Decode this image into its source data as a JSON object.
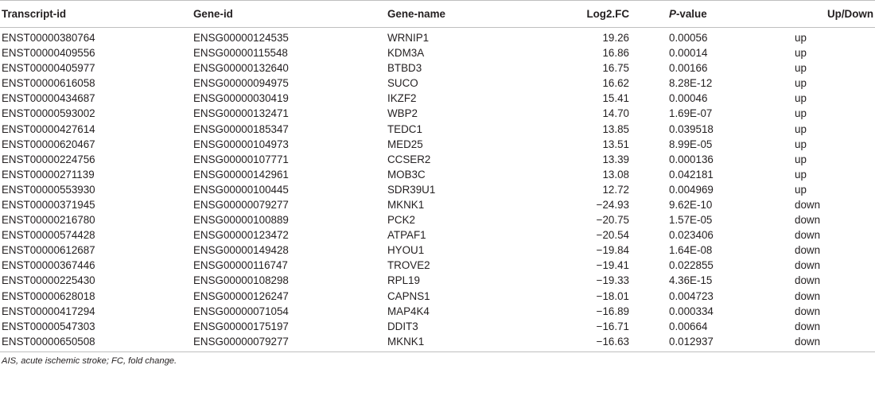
{
  "table": {
    "headers": {
      "transcript_id": "Transcript-id",
      "gene_id": "Gene-id",
      "gene_name": "Gene-name",
      "log2fc": "Log2.FC",
      "pvalue_p": "P",
      "pvalue_rest": "-value",
      "updown": "Up/Down"
    },
    "rows": [
      {
        "transcript": "ENST00000380764",
        "gene_id": "ENSG00000124535",
        "gene_name": "WRNIP1",
        "log2fc": "19.26",
        "pvalue": "0.00056",
        "direction": "up"
      },
      {
        "transcript": "ENST00000409556",
        "gene_id": "ENSG00000115548",
        "gene_name": "KDM3A",
        "log2fc": "16.86",
        "pvalue": "0.00014",
        "direction": "up"
      },
      {
        "transcript": "ENST00000405977",
        "gene_id": "ENSG00000132640",
        "gene_name": "BTBD3",
        "log2fc": "16.75",
        "pvalue": "0.00166",
        "direction": "up"
      },
      {
        "transcript": "ENST00000616058",
        "gene_id": "ENSG00000094975",
        "gene_name": "SUCO",
        "log2fc": "16.62",
        "pvalue": "8.28E-12",
        "direction": "up"
      },
      {
        "transcript": "ENST00000434687",
        "gene_id": "ENSG00000030419",
        "gene_name": "IKZF2",
        "log2fc": "15.41",
        "pvalue": "0.00046",
        "direction": "up"
      },
      {
        "transcript": "ENST00000593002",
        "gene_id": "ENSG00000132471",
        "gene_name": "WBP2",
        "log2fc": "14.70",
        "pvalue": "1.69E-07",
        "direction": "up"
      },
      {
        "transcript": "ENST00000427614",
        "gene_id": "ENSG00000185347",
        "gene_name": "TEDC1",
        "log2fc": "13.85",
        "pvalue": "0.039518",
        "direction": "up"
      },
      {
        "transcript": "ENST00000620467",
        "gene_id": "ENSG00000104973",
        "gene_name": "MED25",
        "log2fc": "13.51",
        "pvalue": "8.99E-05",
        "direction": "up"
      },
      {
        "transcript": "ENST00000224756",
        "gene_id": "ENSG00000107771",
        "gene_name": "CCSER2",
        "log2fc": "13.39",
        "pvalue": "0.000136",
        "direction": "up"
      },
      {
        "transcript": "ENST00000271139",
        "gene_id": "ENSG00000142961",
        "gene_name": "MOB3C",
        "log2fc": "13.08",
        "pvalue": "0.042181",
        "direction": "up"
      },
      {
        "transcript": "ENST00000553930",
        "gene_id": "ENSG00000100445",
        "gene_name": "SDR39U1",
        "log2fc": "12.72",
        "pvalue": "0.004969",
        "direction": "up"
      },
      {
        "transcript": "ENST00000371945",
        "gene_id": "ENSG00000079277",
        "gene_name": "MKNK1",
        "log2fc": "−24.93",
        "pvalue": "9.62E-10",
        "direction": "down"
      },
      {
        "transcript": "ENST00000216780",
        "gene_id": "ENSG00000100889",
        "gene_name": "PCK2",
        "log2fc": "−20.75",
        "pvalue": "1.57E-05",
        "direction": "down"
      },
      {
        "transcript": "ENST00000574428",
        "gene_id": "ENSG00000123472",
        "gene_name": "ATPAF1",
        "log2fc": "−20.54",
        "pvalue": "0.023406",
        "direction": "down"
      },
      {
        "transcript": "ENST00000612687",
        "gene_id": "ENSG00000149428",
        "gene_name": "HYOU1",
        "log2fc": "−19.84",
        "pvalue": "1.64E-08",
        "direction": "down"
      },
      {
        "transcript": "ENST00000367446",
        "gene_id": "ENSG00000116747",
        "gene_name": "TROVE2",
        "log2fc": "−19.41",
        "pvalue": "0.022855",
        "direction": "down"
      },
      {
        "transcript": "ENST00000225430",
        "gene_id": "ENSG00000108298",
        "gene_name": "RPL19",
        "log2fc": "−19.33",
        "pvalue": "4.36E-15",
        "direction": "down"
      },
      {
        "transcript": "ENST00000628018",
        "gene_id": "ENSG00000126247",
        "gene_name": "CAPNS1",
        "log2fc": "−18.01",
        "pvalue": "0.004723",
        "direction": "down"
      },
      {
        "transcript": "ENST00000417294",
        "gene_id": "ENSG00000071054",
        "gene_name": "MAP4K4",
        "log2fc": "−16.89",
        "pvalue": "0.000334",
        "direction": "down"
      },
      {
        "transcript": "ENST00000547303",
        "gene_id": "ENSG00000175197",
        "gene_name": "DDIT3",
        "log2fc": "−16.71",
        "pvalue": "0.00664",
        "direction": "down"
      },
      {
        "transcript": "ENST00000650508",
        "gene_id": "ENSG00000079277",
        "gene_name": "MKNK1",
        "log2fc": "−16.63",
        "pvalue": "0.012937",
        "direction": "down"
      }
    ]
  },
  "footnote": "AIS, acute ischemic stroke; FC, fold change."
}
